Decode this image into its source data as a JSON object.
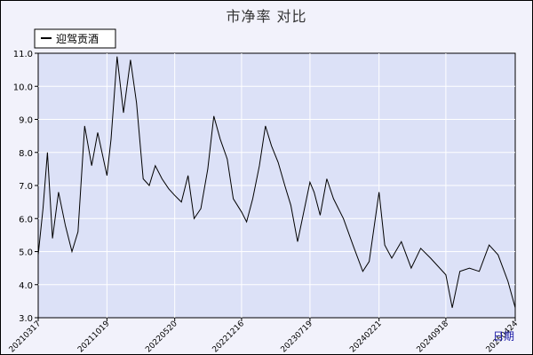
{
  "chart_data": {
    "type": "line",
    "title": "市净率  对比",
    "xlabel": "日期",
    "ylabel": "",
    "ylim": [
      3.0,
      11.0
    ],
    "yticks": [
      "3.0",
      "4.0",
      "5.0",
      "6.0",
      "7.0",
      "8.0",
      "9.0",
      "10.0",
      "11.0"
    ],
    "xticks": [
      "20210317",
      "20211019",
      "20220520",
      "20221216",
      "20230719",
      "20240221",
      "20240918",
      "20250424"
    ],
    "grid": true,
    "legend_position": "top-left",
    "colors": {
      "background": "#dce1f7",
      "grid": "#ffffff",
      "line": "#000000"
    },
    "series": [
      {
        "name": "迎驾贡酒",
        "x": [
          "20210317",
          "20210401",
          "20210415",
          "20210501",
          "20210520",
          "20210610",
          "20210701",
          "20210720",
          "20210810",
          "20210901",
          "20210920",
          "20211019",
          "20211101",
          "20211120",
          "20211210",
          "20220101",
          "20220120",
          "20220210",
          "20220301",
          "20220320",
          "20220410",
          "20220501",
          "20220520",
          "20220610",
          "20220701",
          "20220720",
          "20220810",
          "20220901",
          "20220920",
          "20221010",
          "20221101",
          "20221120",
          "20221216",
          "20230101",
          "20230120",
          "20230210",
          "20230301",
          "20230320",
          "20230410",
          "20230501",
          "20230520",
          "20230610",
          "20230719",
          "20230801",
          "20230820",
          "20230910",
          "20231001",
          "20231101",
          "20231201",
          "20240101",
          "20240121",
          "20240221",
          "20240310",
          "20240401",
          "20240501",
          "20240601",
          "20240701",
          "20240801",
          "20240918",
          "20241008",
          "20241101",
          "20241201",
          "20250101",
          "20250201",
          "20250301",
          "20250401",
          "20250424"
        ],
        "values": [
          4.9,
          6.3,
          8.0,
          5.4,
          6.8,
          5.8,
          5.0,
          5.6,
          8.8,
          7.6,
          8.6,
          7.3,
          8.4,
          10.9,
          9.2,
          10.8,
          9.5,
          7.2,
          7.0,
          7.6,
          7.2,
          6.9,
          6.7,
          6.5,
          7.3,
          6.0,
          6.3,
          7.5,
          9.1,
          8.4,
          7.8,
          6.6,
          6.2,
          5.9,
          6.6,
          7.6,
          8.8,
          8.2,
          7.7,
          7.0,
          6.4,
          5.3,
          7.1,
          6.8,
          6.1,
          7.2,
          6.6,
          6.0,
          5.2,
          4.4,
          4.7,
          6.8,
          5.2,
          4.8,
          5.3,
          4.5,
          5.1,
          4.8,
          4.3,
          3.3,
          4.4,
          4.5,
          4.4,
          5.2,
          4.9,
          4.1,
          3.3
        ]
      }
    ]
  }
}
